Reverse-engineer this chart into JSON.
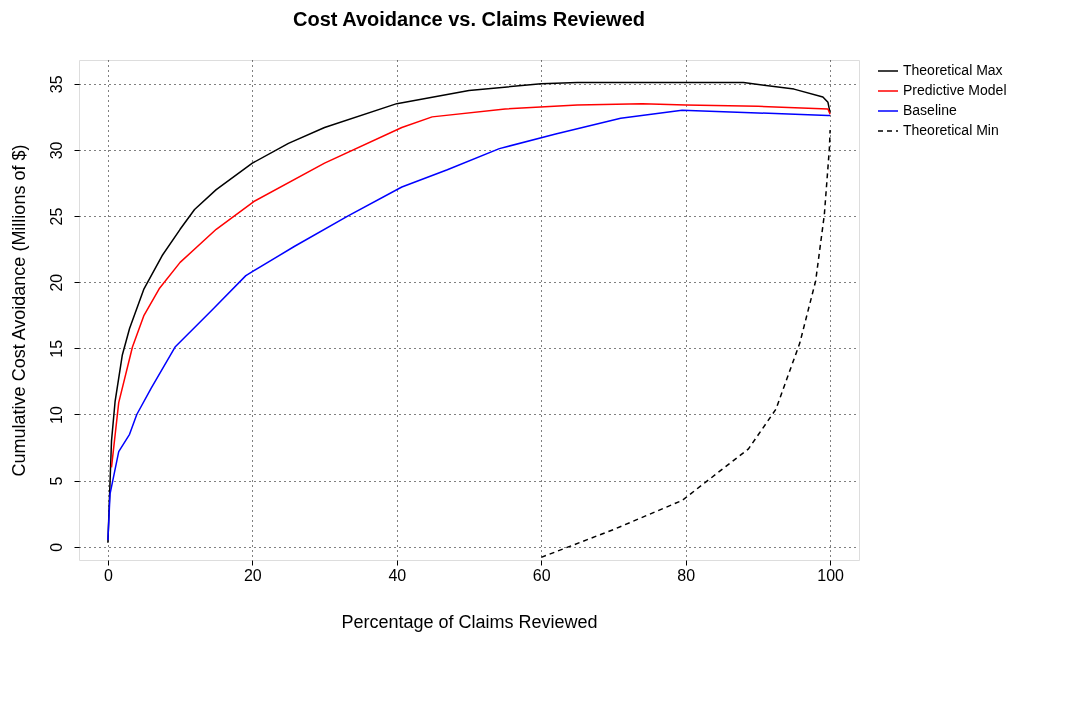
{
  "chart_data": {
    "type": "line",
    "title": "Cost Avoidance vs. Claims Reviewed",
    "xlabel": "Percentage of Claims Reviewed",
    "ylabel": "Cumulative Cost Avoidance (Millions of $)",
    "xlim": [
      -4,
      104
    ],
    "ylim": [
      -1,
      36.8
    ],
    "xticks": [
      0,
      20,
      40,
      60,
      80,
      100
    ],
    "yticks": [
      0,
      5,
      10,
      15,
      20,
      25,
      30,
      35
    ],
    "grid": true,
    "legend": "right",
    "series": [
      {
        "name": "Theoretical Max",
        "color": "#000000",
        "line_style": "solid",
        "x": [
          0,
          0.5,
          1,
          2,
          3,
          5,
          7.5,
          10,
          12,
          15,
          20,
          25,
          30,
          40,
          50,
          60,
          65,
          88,
          95,
          99,
          99.7,
          100
        ],
        "values": [
          0.3,
          8,
          11,
          14.5,
          16.5,
          19.5,
          22,
          24,
          25.5,
          27,
          29,
          30.5,
          31.7,
          33.5,
          34.5,
          35,
          35.1,
          35.1,
          34.6,
          34,
          33.6,
          32.8
        ]
      },
      {
        "name": "Predictive Model",
        "color": "#ff0000",
        "line_style": "solid",
        "x": [
          0.5,
          1.5,
          3.4,
          5,
          7.1,
          10,
          15,
          20.2,
          30,
          40.7,
          44.9,
          55,
          65,
          74,
          80,
          90,
          99.7,
          100
        ],
        "values": [
          6,
          10.9,
          15.1,
          17.5,
          19.5,
          21.5,
          24,
          26.1,
          29,
          31.7,
          32.5,
          33.1,
          33.4,
          33.5,
          33.4,
          33.3,
          33.1,
          32.7
        ]
      },
      {
        "name": "Baseline",
        "color": "#0000ff",
        "line_style": "solid",
        "x": [
          0,
          0.3,
          1.5,
          3,
          4,
          6,
          9.3,
          14.6,
          19.1,
          25.8,
          33.2,
          40.7,
          47,
          54.2,
          62,
          71,
          79.5,
          90,
          99.7,
          100
        ],
        "values": [
          0.5,
          4,
          7.2,
          8.5,
          10,
          12,
          15.1,
          18,
          20.5,
          22.7,
          25,
          27.2,
          28.5,
          30.1,
          31.2,
          32.4,
          33,
          32.8,
          32.6,
          32.6
        ]
      },
      {
        "name": "Theoretical Min",
        "color": "#000000",
        "line_style": "dashed",
        "x": [
          60,
          70,
          79.5,
          88.7,
          92.5,
          95.8,
          98,
          99.2,
          99.9,
          100
        ],
        "values": [
          -0.8,
          1.3,
          3.5,
          7.4,
          10.4,
          15.4,
          20.1,
          25.1,
          30.1,
          31.5
        ]
      }
    ]
  }
}
